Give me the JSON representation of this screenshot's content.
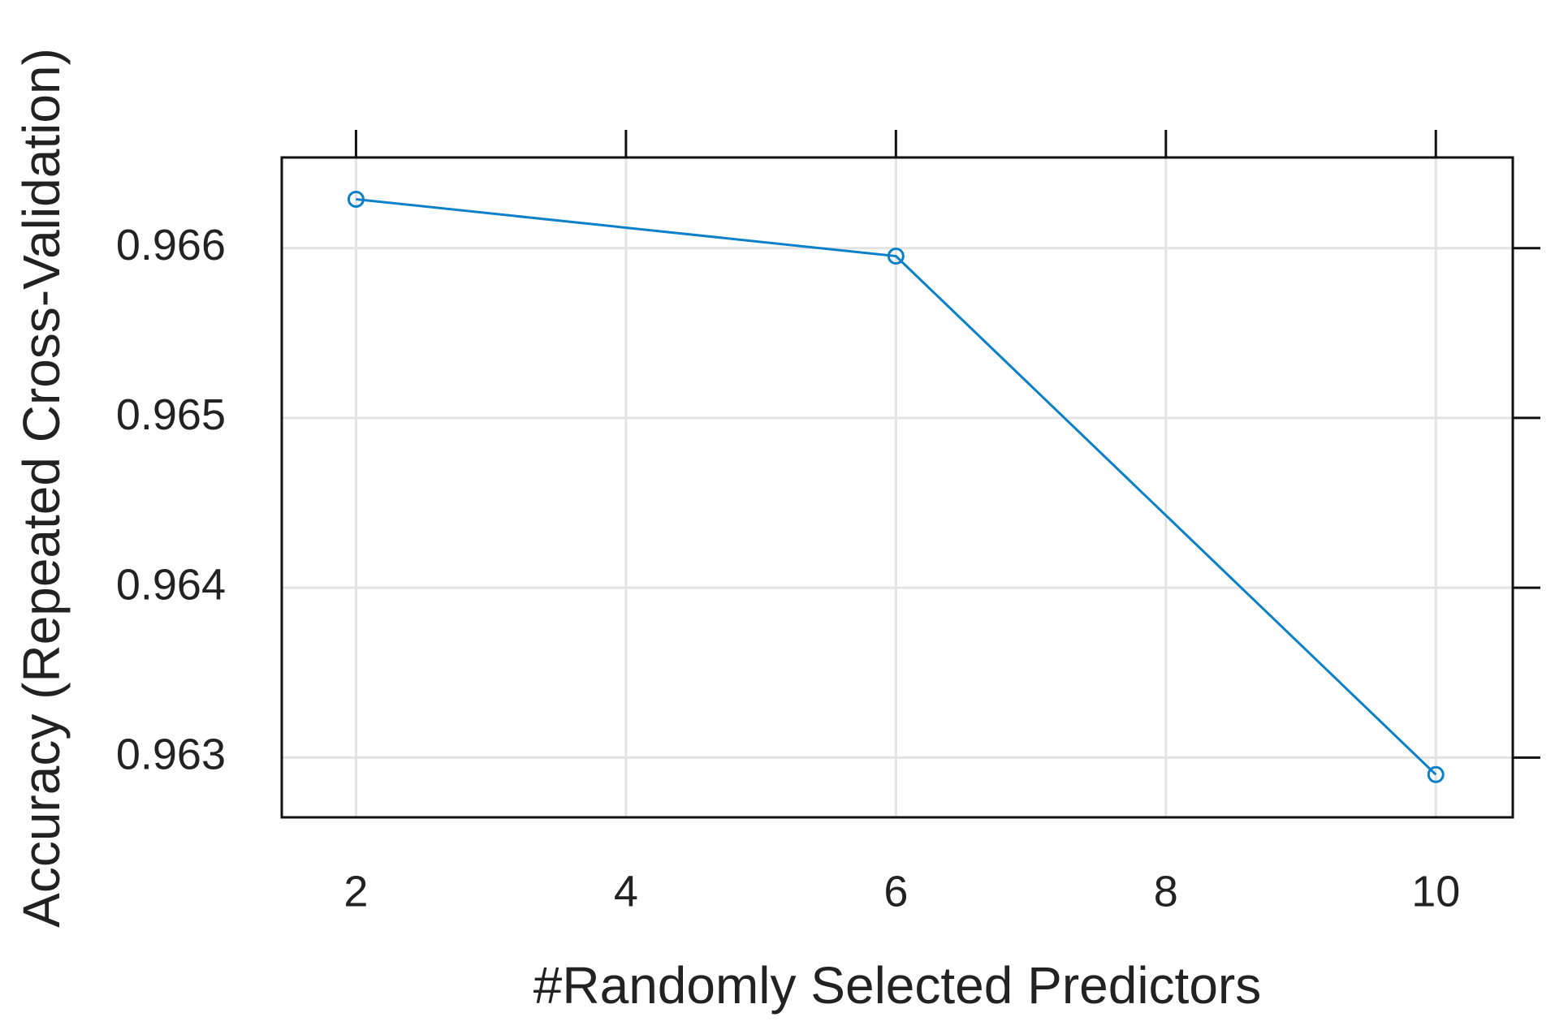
{
  "chart_data": {
    "type": "line",
    "x_label": "#Randomly Selected Predictors",
    "y_label": "Accuracy (Repeated Cross-Validation)",
    "x": [
      2,
      6,
      10
    ],
    "series": [
      {
        "color": "#0a80c8",
        "values": [
          0.966288,
          0.965953,
          0.9629
        ]
      }
    ],
    "xlim": [
      1.45,
      10.57
    ],
    "xticks": [
      2,
      4,
      6,
      8,
      10
    ],
    "ylim": [
      0.962648,
      0.966534
    ],
    "yticks": [
      0.963,
      0.964,
      0.965,
      0.966
    ],
    "grid": true
  }
}
